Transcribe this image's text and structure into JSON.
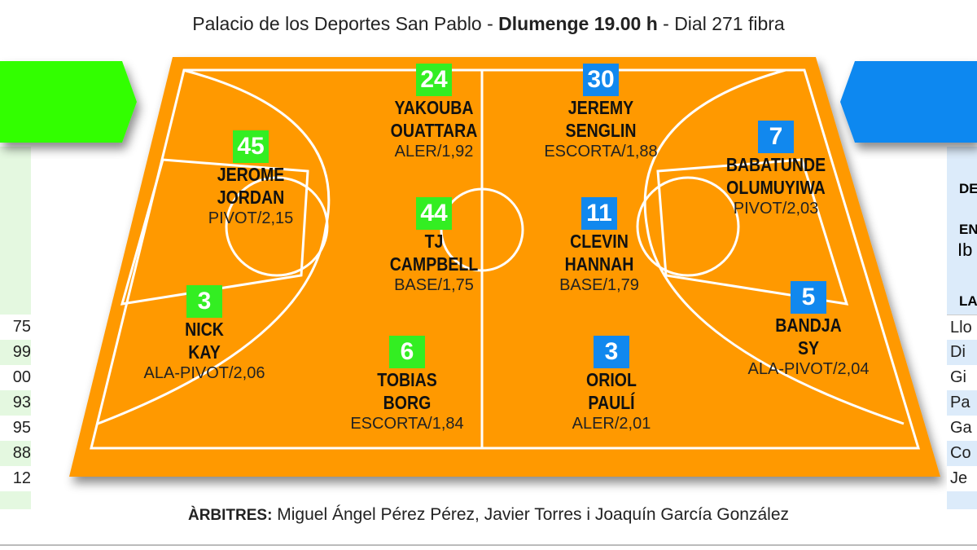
{
  "header": {
    "venue": "Palacio de los Deportes San Pablo - ",
    "time": "Dlumenge 19.00 h",
    "channel": " - Dial 271 fibra"
  },
  "colors": {
    "home": "#33ee22",
    "away": "#1188ee",
    "court": "#ff9900"
  },
  "home_players": [
    {
      "number": "45",
      "name1": "JEROME",
      "name2": "JORDAN",
      "pos": "PIVOT/2,15"
    },
    {
      "number": "24",
      "name1": "YAKOUBA",
      "name2": "OUATTARA",
      "pos": "ALER/1,92"
    },
    {
      "number": "44",
      "name1": "TJ",
      "name2": "CAMPBELL",
      "pos": "BASE/1,75"
    },
    {
      "number": "3",
      "name1": "NICK",
      "name2": "KAY",
      "pos": "ALA-PIVOT/2,06"
    },
    {
      "number": "6",
      "name1": "TOBIAS",
      "name2": "BORG",
      "pos": "ESCORTA/1,84"
    }
  ],
  "away_players": [
    {
      "number": "30",
      "name1": "JEREMY",
      "name2": "SENGLIN",
      "pos": "ESCORTA/1,88"
    },
    {
      "number": "7",
      "name1": "BABATUNDE",
      "name2": "OLUMUYIWA",
      "pos": "PIVOT/2,03"
    },
    {
      "number": "11",
      "name1": "CLEVIN",
      "name2": "HANNAH",
      "pos": "BASE/1,79"
    },
    {
      "number": "5",
      "name1": "BANDJA",
      "name2": "SY",
      "pos": "ALA-PIVOT/2,04"
    },
    {
      "number": "3",
      "name1": "ORIOL",
      "name2": "PAULÍ",
      "pos": "ALER/2,01"
    }
  ],
  "left_panel": {
    "rows": [
      "75",
      "99",
      "00",
      "93",
      "95",
      "88",
      "12"
    ]
  },
  "right_panel": {
    "label1": "DE",
    "label2": "EN",
    "value2": "Ib",
    "label3": "LA",
    "rows": [
      "Llo",
      "Di",
      "Gi",
      "Pa",
      "Ga",
      "Co",
      "Je"
    ]
  },
  "footer": {
    "label": "ÀRBITRES:",
    "referees": " Miguel Ángel Pérez Pérez, Javier Torres i Joaquín García González"
  }
}
